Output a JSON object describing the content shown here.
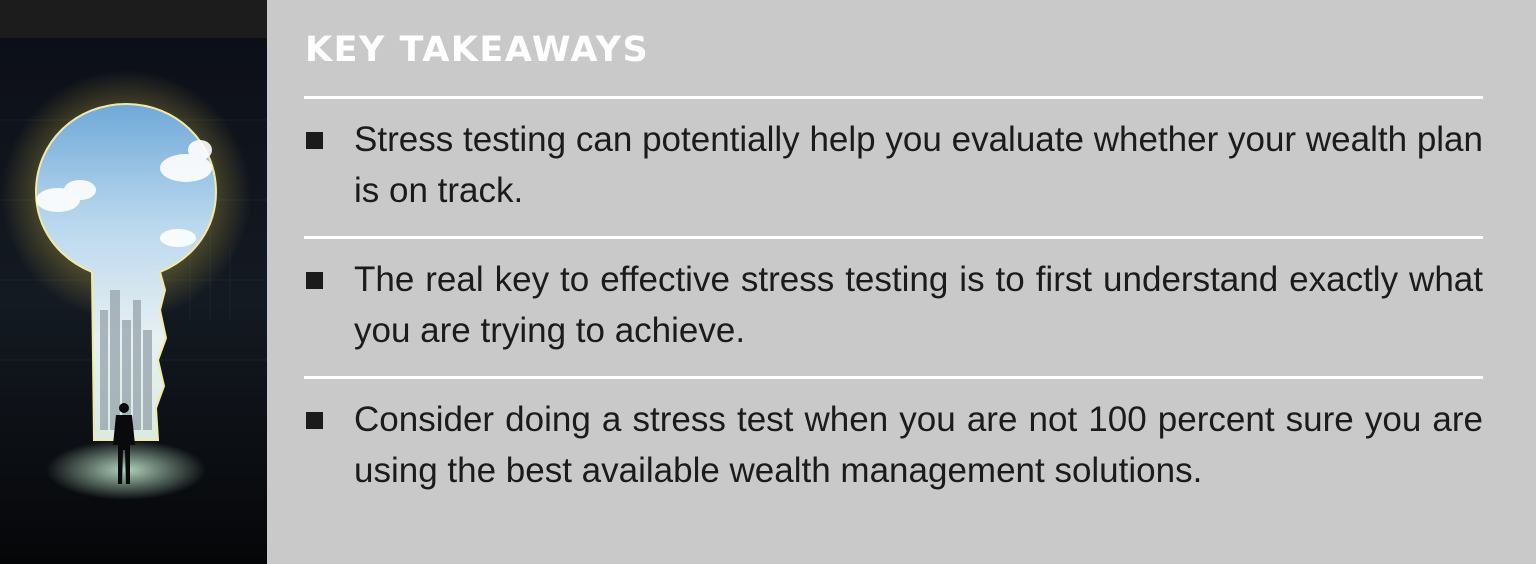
{
  "image": {
    "icon": "keyhole-businessman-illustration"
  },
  "section": {
    "heading": "KEY TAKEAWAYS",
    "items": [
      {
        "text": "Stress testing can potentially help you evaluate whether your wealth plan is on track."
      },
      {
        "text": "The real key to effective stress testing is to first understand exactly what you are trying to achieve."
      },
      {
        "text": "Consider doing a stress test when you are not 100 percent sure you are using the best available wealth management solutions."
      }
    ]
  },
  "colors": {
    "panel_background": "#c9c9c9",
    "heading_text": "#ffffff",
    "body_text": "#1b1b1b",
    "rules": "#ffffff"
  }
}
